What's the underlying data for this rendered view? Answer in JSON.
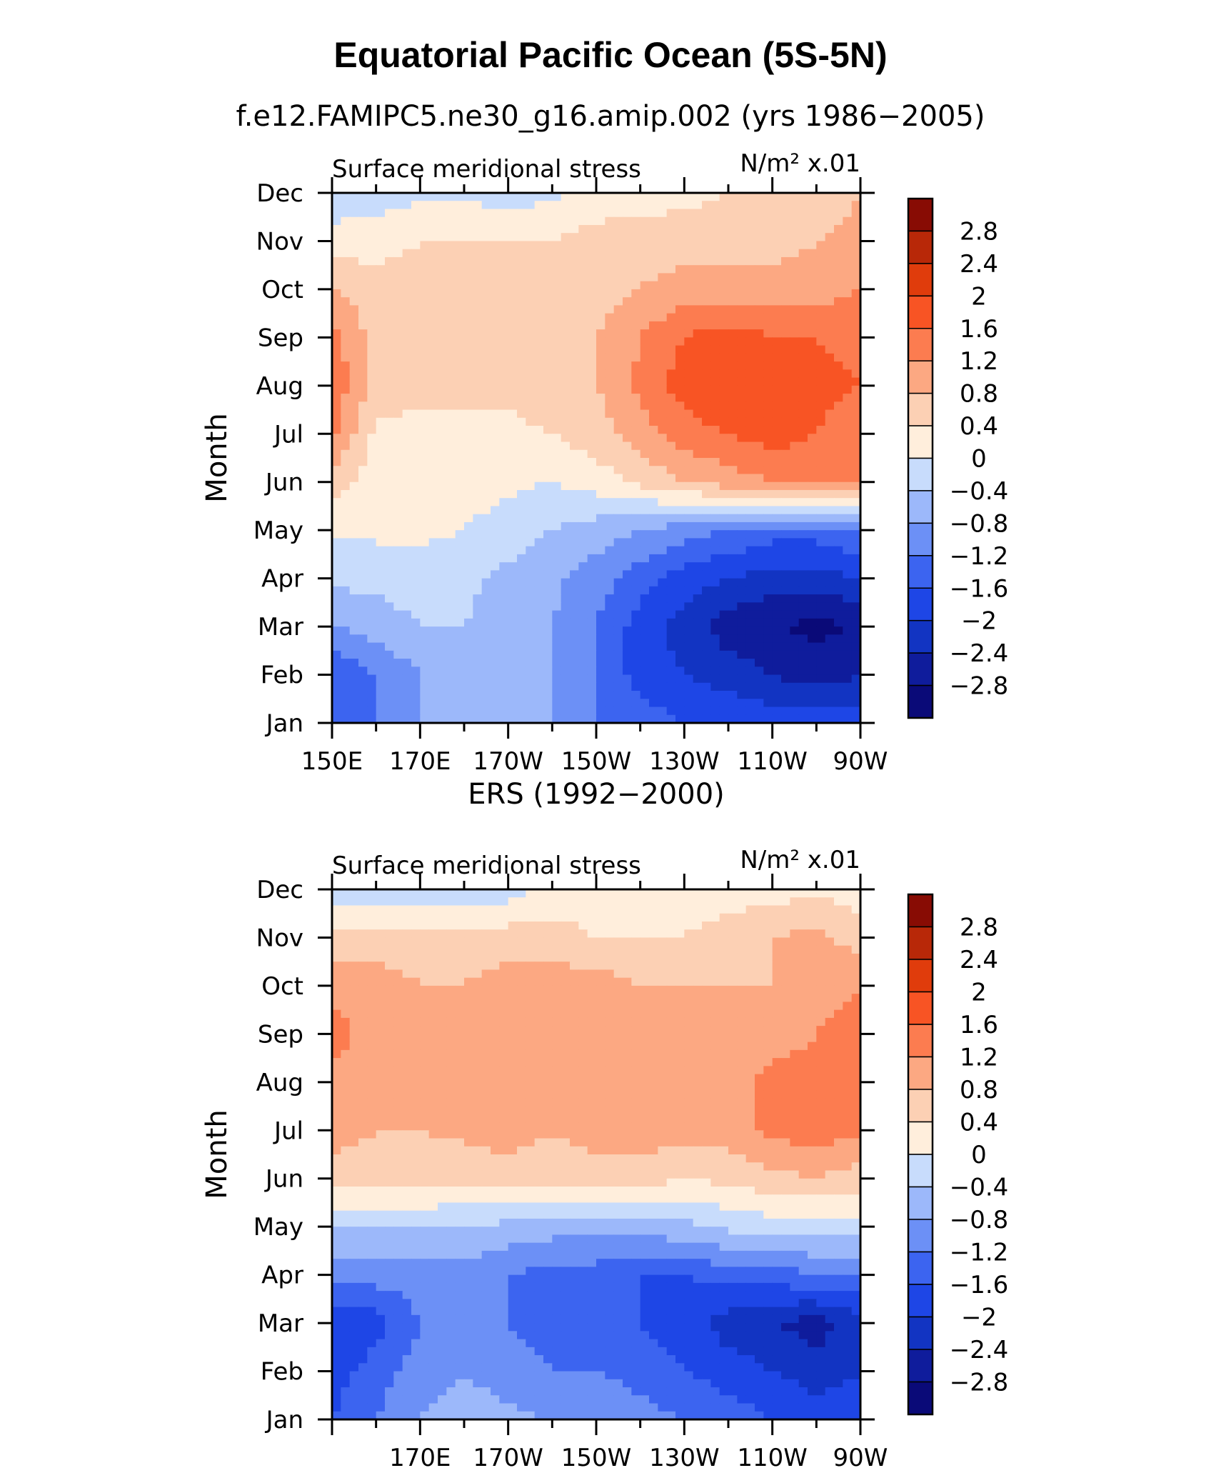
{
  "figure": {
    "title": "Equatorial Pacific Ocean (5S-5N)",
    "subtitle": "f.e12.FAMIPC5.ne30_g16.amip.002 (yrs 1986−2005)"
  },
  "chart_data": [
    {
      "type": "heatmap",
      "title": "f.e12.FAMIPC5.ne30_g16.amip.002 (yrs 1986−2005)",
      "left_label": "Surface meridional stress",
      "unit_label": "N/m² x.01",
      "ylabel": "Month",
      "x_tick_labels": [
        "150E",
        "170E",
        "170W",
        "150W",
        "130W",
        "110W",
        "90W"
      ],
      "x_range_deg_east": [
        150,
        270
      ],
      "y_tick_labels": [
        "Jan",
        "Feb",
        "Mar",
        "Apr",
        "May",
        "Jun",
        "Jul",
        "Aug",
        "Sep",
        "Oct",
        "Nov",
        "Dec"
      ],
      "x_lon": [
        150,
        160,
        170,
        180,
        190,
        200,
        210,
        220,
        230,
        240,
        250,
        260,
        270
      ],
      "y_months": [
        "Jan",
        "Feb",
        "Mar",
        "Apr",
        "May",
        "Jun",
        "Jul",
        "Aug",
        "Sep",
        "Oct",
        "Nov",
        "Dec"
      ],
      "values": [
        [
          -1.6,
          -1.2,
          -0.8,
          -0.8,
          -0.8,
          -0.8,
          -1.2,
          -1.4,
          -1.6,
          -1.6,
          -1.8,
          -1.8,
          -1.8
        ],
        [
          -1.6,
          -1.2,
          -0.8,
          -0.8,
          -0.8,
          -0.8,
          -1.2,
          -1.8,
          -2.0,
          -2.2,
          -2.4,
          -2.6,
          -2.4
        ],
        [
          -0.8,
          -0.6,
          -0.4,
          -0.4,
          -0.6,
          -0.8,
          -1.2,
          -1.8,
          -2.2,
          -2.6,
          -2.8,
          -2.9,
          -2.8
        ],
        [
          -0.3,
          -0.3,
          -0.2,
          -0.3,
          -0.5,
          -0.7,
          -1.0,
          -1.4,
          -1.8,
          -2.0,
          -2.2,
          -2.2,
          -2.0
        ],
        [
          0.1,
          0.1,
          0.1,
          0.0,
          -0.2,
          -0.4,
          -0.6,
          -0.8,
          -1.0,
          -1.2,
          -1.4,
          -1.4,
          -1.2
        ],
        [
          0.6,
          0.2,
          0.2,
          0.2,
          0.1,
          0.0,
          0.2,
          0.5,
          0.8,
          1.0,
          1.2,
          1.2,
          1.2
        ],
        [
          1.3,
          0.3,
          0.3,
          0.3,
          0.3,
          0.4,
          0.6,
          1.0,
          1.4,
          1.6,
          1.8,
          1.6,
          1.4
        ],
        [
          1.5,
          0.6,
          0.5,
          0.5,
          0.5,
          0.6,
          0.8,
          1.3,
          1.8,
          2.0,
          2.0,
          1.7,
          1.6
        ],
        [
          1.4,
          0.6,
          0.5,
          0.5,
          0.5,
          0.5,
          0.8,
          1.2,
          1.6,
          1.8,
          1.6,
          1.6,
          1.5
        ],
        [
          0.8,
          0.6,
          0.6,
          0.6,
          0.6,
          0.6,
          0.6,
          0.8,
          1.0,
          1.0,
          1.0,
          1.0,
          1.2
        ],
        [
          0.2,
          0.2,
          0.4,
          0.4,
          0.4,
          0.4,
          0.6,
          0.6,
          0.6,
          0.6,
          0.6,
          0.8,
          0.9
        ],
        [
          -0.3,
          -0.2,
          -0.1,
          -0.1,
          -0.2,
          -0.1,
          0.1,
          0.2,
          0.3,
          0.4,
          0.5,
          0.6,
          0.8
        ]
      ]
    },
    {
      "type": "heatmap",
      "title": "ERS (1992−2000)",
      "left_label": "Surface meridional stress",
      "unit_label": "N/m² x.01",
      "ylabel": "Month",
      "x_tick_labels": [
        "170E",
        "170W",
        "150W",
        "130W",
        "110W",
        "90W"
      ],
      "x_range_deg_east": [
        150,
        270
      ],
      "y_tick_labels": [
        "Jan",
        "Feb",
        "Mar",
        "Apr",
        "May",
        "Jun",
        "Jul",
        "Aug",
        "Sep",
        "Oct",
        "Nov",
        "Dec"
      ],
      "x_lon": [
        150,
        160,
        170,
        180,
        190,
        200,
        210,
        220,
        230,
        240,
        250,
        260,
        270
      ],
      "y_months": [
        "Jan",
        "Feb",
        "Mar",
        "Apr",
        "May",
        "Jun",
        "Jul",
        "Aug",
        "Sep",
        "Oct",
        "Nov",
        "Dec"
      ],
      "values": [
        [
          -1.6,
          -1.2,
          -0.8,
          -0.6,
          -0.7,
          -0.8,
          -0.8,
          -1.0,
          -1.2,
          -1.4,
          -1.6,
          -1.8,
          -1.8
        ],
        [
          -1.8,
          -1.4,
          -1.0,
          -0.8,
          -1.0,
          -1.2,
          -1.2,
          -1.4,
          -1.6,
          -1.8,
          -2.0,
          -2.2,
          -2.0
        ],
        [
          -2.0,
          -1.8,
          -1.2,
          -1.0,
          -1.2,
          -1.4,
          -1.4,
          -1.6,
          -1.8,
          -2.2,
          -2.4,
          -2.6,
          -2.2
        ],
        [
          -1.0,
          -1.0,
          -1.0,
          -1.0,
          -1.2,
          -1.4,
          -1.4,
          -1.6,
          -1.6,
          -1.4,
          -1.4,
          -1.2,
          -1.2
        ],
        [
          -0.4,
          -0.4,
          -0.4,
          -0.4,
          -0.5,
          -0.6,
          -0.6,
          -0.6,
          -0.5,
          -0.3,
          -0.2,
          -0.2,
          -0.2
        ],
        [
          0.6,
          0.6,
          0.6,
          0.5,
          0.6,
          0.6,
          0.6,
          0.6,
          0.4,
          0.5,
          0.7,
          0.8,
          0.6
        ],
        [
          1.0,
          0.8,
          0.8,
          0.9,
          1.0,
          0.8,
          1.0,
          1.0,
          1.0,
          1.0,
          1.3,
          1.4,
          1.3
        ],
        [
          1.0,
          1.0,
          0.8,
          1.0,
          1.0,
          1.1,
          1.0,
          1.0,
          1.0,
          0.9,
          1.4,
          1.3,
          1.3
        ],
        [
          1.4,
          1.0,
          0.8,
          1.0,
          1.0,
          1.0,
          1.1,
          1.1,
          1.0,
          0.9,
          1.0,
          1.2,
          1.4
        ],
        [
          1.0,
          1.0,
          0.8,
          0.8,
          1.0,
          1.0,
          1.0,
          0.8,
          0.8,
          0.8,
          0.8,
          1.0,
          1.2
        ],
        [
          0.6,
          0.6,
          0.6,
          0.6,
          0.6,
          0.6,
          0.4,
          0.4,
          0.4,
          0.6,
          0.8,
          0.9,
          0.6
        ],
        [
          -0.3,
          -0.3,
          -0.4,
          -0.3,
          -0.2,
          0.1,
          0.1,
          0.2,
          0.2,
          0.2,
          0.2,
          0.3,
          0.2
        ]
      ]
    }
  ],
  "colorbar": {
    "levels": [
      -2.8,
      -2.4,
      -2.0,
      -1.6,
      -1.2,
      -0.8,
      -0.4,
      0,
      0.4,
      0.8,
      1.2,
      1.6,
      2.0,
      2.4,
      2.8
    ],
    "labels": [
      "−2.8",
      "−2.4",
      "−2",
      "−1.6",
      "−1.2",
      "−0.8",
      "−0.4",
      "0",
      "0.4",
      "0.8",
      "1.2",
      "1.6",
      "2",
      "2.4",
      "2.8"
    ],
    "colors": [
      "#0a0a78",
      "#0f1c9c",
      "#1234c2",
      "#1e46e6",
      "#3c64f0",
      "#6c90f6",
      "#9cb8fa",
      "#c8dcfc",
      "#ffeedc",
      "#fcd0b4",
      "#fca882",
      "#fc7c50",
      "#f85424",
      "#e03c0c",
      "#b82808",
      "#880c04"
    ]
  }
}
